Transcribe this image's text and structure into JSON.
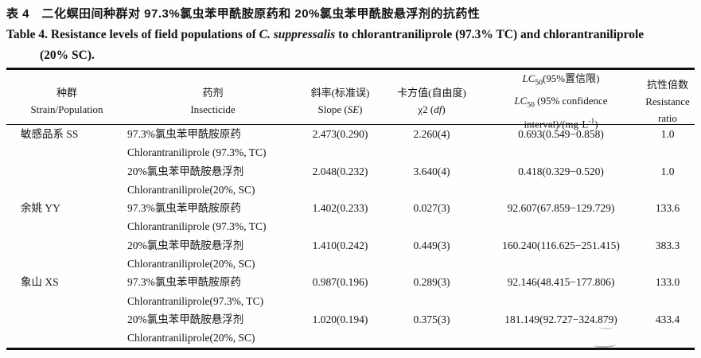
{
  "title": {
    "cn": "表 4　二化螟田间种群对 97.3%氯虫苯甲酰胺原药和 20%氯虫苯甲酰胺悬浮剂的抗药性",
    "en_prefix": "Table 4. Resistance levels of field populations of ",
    "en_species": "C. suppressalis",
    "en_suffix": " to chlorantraniliprole (97.3% TC) and chlorantraniliprole",
    "en_line2": "(20% SC)."
  },
  "header": {
    "strain_cn": "种群",
    "strain_en": "Strain/Population",
    "insecticide_cn": "药剂",
    "insecticide_en": "Insecticide",
    "slope_cn": "斜率(标准误)",
    "slope_en_pre": "Slope (",
    "slope_en_it": "SE",
    "slope_en_post": ")",
    "chi_cn": "卡方值(自由度)",
    "chi_en_pre": "χ2 (",
    "chi_en_it": "df",
    "chi_en_post": ")",
    "lc_l1_it": "LC",
    "lc_l1_sub": "50",
    "lc_l1_rest": "(95%置信限)",
    "lc_l2_it": "LC",
    "lc_l2_sub": "50",
    "lc_l2_rest": " (95% confidence",
    "lc_l3_pre": "interval)/(mg·L",
    "lc_l3_sup": "-1",
    "lc_l3_post": ")",
    "rr_cn": "抗性倍数",
    "rr_en1": "Resistance",
    "rr_en2": "ratio"
  },
  "table": {
    "groups": [
      {
        "strain": "敏感品系 SS",
        "entries": [
          {
            "insecticide_cn": "97.3%氯虫苯甲酰胺原药",
            "insecticide_en": "Chlorantraniliprole (97.3%, TC)",
            "slope": "2.473(0.290)",
            "chi2": "2.260(4)",
            "lc50": "0.693(0.549−0.858)",
            "rr": "1.0"
          },
          {
            "insecticide_cn": "20%氯虫苯甲酰胺悬浮剂",
            "insecticide_en": "Chlorantraniliprole(20%, SC)",
            "slope": "2.048(0.232)",
            "chi2": "3.640(4)",
            "lc50": "0.418(0.329−0.520)",
            "rr": "1.0"
          }
        ]
      },
      {
        "strain": "余姚 YY",
        "entries": [
          {
            "insecticide_cn": "97.3%氯虫苯甲酰胺原药",
            "insecticide_en": "Chlorantraniliprole (97.3%, TC)",
            "slope": "1.402(0.233)",
            "chi2": "0.027(3)",
            "lc50": "92.607(67.859−129.729)",
            "rr": "133.6"
          },
          {
            "insecticide_cn": "20%氯虫苯甲酰胺悬浮剂",
            "insecticide_en": "Chlorantraniliprole(20%, SC)",
            "slope": "1.410(0.242)",
            "chi2": "0.449(3)",
            "lc50": "160.240(116.625−251.415)",
            "rr": "383.3"
          }
        ]
      },
      {
        "strain": "象山 XS",
        "entries": [
          {
            "insecticide_cn": "97.3%氯虫苯甲酰胺原药",
            "insecticide_en": "Chlorantraniliprole(97.3%, TC)",
            "slope": "0.987(0.196)",
            "chi2": "0.289(3)",
            "lc50": "92.146(48.415−177.806)",
            "rr": "133.0"
          },
          {
            "insecticide_cn": "20%氯虫苯甲酰胺悬浮剂",
            "insecticide_en": "Chlorantraniliprole(20%, SC)",
            "slope": "1.020(0.194)",
            "chi2": "0.375(3)",
            "lc50": "181.149(92.727−324.879)",
            "rr": "433.4"
          }
        ]
      }
    ]
  }
}
